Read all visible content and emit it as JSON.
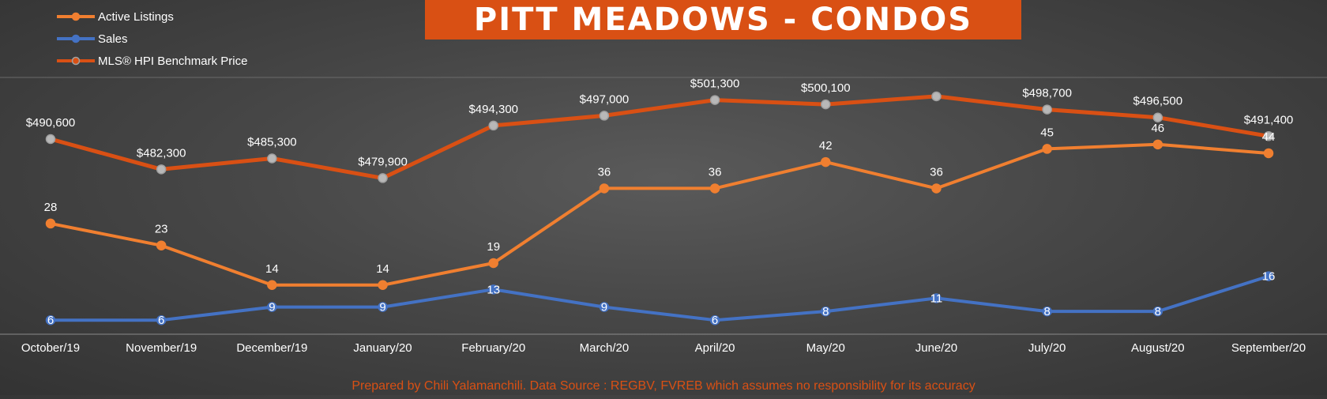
{
  "chart_data": {
    "type": "line",
    "title": "PITT MEADOWS - CONDOS",
    "categories": [
      "October/19",
      "November/19",
      "December/19",
      "January/20",
      "February/20",
      "March/20",
      "April/20",
      "May/20",
      "June/20",
      "July/20",
      "August/20",
      "September/20"
    ],
    "series": [
      {
        "name": "Active Listings",
        "color": "#f07f30",
        "axis": "left",
        "values": [
          28,
          23,
          14,
          14,
          19,
          36,
          36,
          42,
          36,
          45,
          46,
          44
        ],
        "labels": [
          "28",
          "23",
          "14",
          "14",
          "19",
          "36",
          "36",
          "42",
          "36",
          "45",
          "46",
          "44"
        ]
      },
      {
        "name": "Sales",
        "color": "#4472c4",
        "axis": "left",
        "values": [
          6,
          6,
          9,
          9,
          13,
          9,
          6,
          8,
          11,
          8,
          8,
          16
        ],
        "labels": [
          "6",
          "6",
          "9",
          "9",
          "13",
          "9",
          "6",
          "8",
          "11",
          "8",
          "8",
          "16"
        ]
      },
      {
        "name": "MLS® HPI Benchmark Price",
        "color": "#d95014",
        "axis": "right",
        "values": [
          490600,
          482300,
          485300,
          479900,
          494300,
          497000,
          501300,
          500100,
          502300,
          498700,
          496500,
          491400
        ],
        "labels": [
          "$490,600",
          "$482,300",
          "$485,300",
          "$479,900",
          "$494,300",
          "$497,000",
          "$501,300",
          "$500,100",
          "",
          "$498,700",
          "$496,500",
          "$491,400"
        ]
      }
    ],
    "legend_position": "top-left",
    "grid": false
  },
  "footer": "Prepared by Chili Yalamanchili. Data Source : REGBV, FVREB which assumes no responsibility for its accuracy"
}
